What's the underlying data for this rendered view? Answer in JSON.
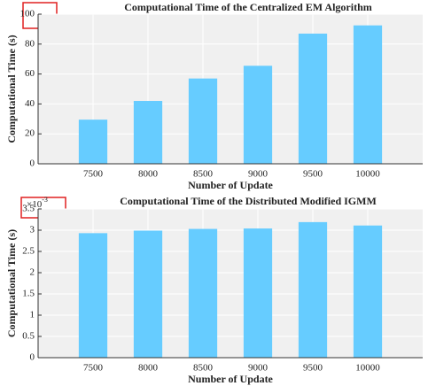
{
  "chart_data": [
    {
      "type": "bar",
      "title": "Computational Time of the Centralized EM Algorithm",
      "xlabel": "Number of Update",
      "ylabel": "Computational Time (s)",
      "x": [
        7500,
        8000,
        8500,
        9000,
        9500,
        10000
      ],
      "values": [
        29.5,
        42,
        57,
        65.5,
        87,
        92.5
      ],
      "color": "#66ccff",
      "xlim": [
        7000,
        10500
      ],
      "xticks": [
        7500,
        8000,
        8500,
        9000,
        9500,
        10000
      ],
      "ylim": [
        0,
        100
      ],
      "yticks": [
        0,
        20,
        40,
        60,
        80,
        100
      ],
      "grid": true
    },
    {
      "type": "bar",
      "title": "Computational Time of the Distributed Modified IGMM",
      "xlabel": "Number of Update",
      "ylabel": "Computational Time (s)",
      "y_multiplier": {
        "base": "×10",
        "exponent": "-3"
      },
      "x": [
        7500,
        8000,
        8500,
        9000,
        9500,
        10000
      ],
      "values": [
        2.93,
        2.99,
        3.03,
        3.04,
        3.19,
        3.11
      ],
      "color": "#66ccff",
      "xlim": [
        7000,
        10500
      ],
      "xticks": [
        7500,
        8000,
        8500,
        9000,
        9500,
        10000
      ],
      "ylim": [
        0,
        3.5
      ],
      "yticks": [
        0,
        0.5,
        1,
        1.5,
        2,
        2.5,
        3,
        3.5
      ],
      "grid": true
    }
  ]
}
